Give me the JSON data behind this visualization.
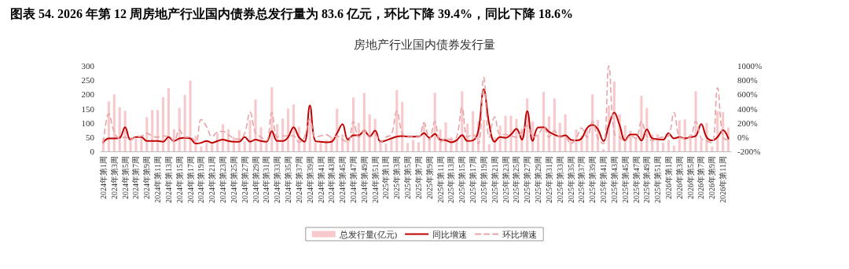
{
  "chart_data": {
    "type": "bar",
    "title": "图表 54. 2026 年第 12 周房地产行业国内债券总发行量为 83.6 亿元，环比下降 39.4%，同比下降 18.6%",
    "subtitle": "房地产行业国内债券发行量",
    "categories": [
      "2024年第1周",
      null,
      "2024年第3周",
      null,
      "2024年第5周",
      null,
      "2024年第7周",
      null,
      "2024年第9周",
      null,
      "2024年第11周",
      null,
      "2024年第13周",
      null,
      "2024年第15周",
      null,
      "2024年第17周",
      null,
      "2024年第19周",
      null,
      "2024年第21周",
      null,
      "2024年第23周",
      null,
      "2024年第25周",
      null,
      "2024年第27周",
      null,
      "2024年第29周",
      null,
      "2024年第31周",
      null,
      "2024年第33周",
      null,
      "2024年第35周",
      null,
      "2024年第37周",
      null,
      "2024年第39周",
      null,
      "2024年第41周",
      null,
      "2024年第43周",
      null,
      "2024年第45周",
      null,
      "2024年第47周",
      null,
      "2024年第49周",
      null,
      "2024年第51周",
      null,
      "2025年第1周",
      null,
      "2025年第3周",
      null,
      "2025年第5周",
      null,
      "2025年第7周",
      null,
      "2025年第9周",
      null,
      "2025年第11周",
      null,
      "2025年第13周",
      null,
      "2025年第15周",
      null,
      "2025年第17周",
      null,
      "2025年第19周",
      null,
      "2025年第21周",
      null,
      "2025年第23周",
      null,
      "2025年第25周",
      null,
      "2025年第27周",
      null,
      "2025年第29周",
      null,
      "2025年第31周",
      null,
      "2025年第33周",
      null,
      "2025年第35周",
      null,
      "2025年第37周",
      null,
      "2025年第39周",
      null,
      "2025年第41周",
      null,
      "2025年第43周",
      null,
      "2025年第45周",
      null,
      "2025年第47周",
      null,
      "2025年第49周",
      null,
      "2025年第51周",
      null,
      "2026年第1周",
      null,
      "2026年第3周",
      null,
      "2026年第5周",
      null,
      "2026年第7周",
      null,
      "2026年第9周",
      null,
      "2026年第11周",
      null
    ],
    "series": [
      {
        "name": "总发行量(亿元)",
        "type": "bar",
        "color": "#f8c9cb",
        "values": [
          45,
          175,
          200,
          155,
          142,
          50,
          45,
          50,
          120,
          145,
          145,
          190,
          222,
          78,
          153,
          198,
          248,
          55,
          17,
          35,
          30,
          65,
          95,
          78,
          50,
          75,
          35,
          110,
          182,
          85,
          40,
          225,
          95,
          115,
          150,
          164,
          86,
          40,
          114,
          30,
          30,
          40,
          50,
          150,
          60,
          50,
          189,
          100,
          205,
          130,
          114,
          40,
          27,
          40,
          215,
          173,
          30,
          40,
          32,
          100,
          45,
          206,
          77,
          102,
          50,
          40,
          211,
          97,
          141,
          105,
          110,
          25,
          50,
          90,
          125,
          125,
          114,
          80,
          186,
          105,
          60,
          209,
          123,
          186,
          100,
          130,
          40,
          77,
          55,
          80,
          200,
          110,
          8,
          161,
          245,
          130,
          91,
          73,
          50,
          195,
          152,
          59,
          60,
          30,
          40,
          20,
          109,
          112,
          60,
          211,
          40,
          100,
          18,
          141,
          138,
          83.6
        ]
      },
      {
        "name": "同比增速",
        "type": "line",
        "axis": "y2",
        "color": "#c00000",
        "line_style": "solid",
        "values": [
          -73,
          -18,
          -18,
          -10,
          138,
          -36,
          0,
          0,
          -55,
          -55,
          -55,
          -65,
          0,
          -55,
          -18,
          -10,
          -18,
          -91,
          -80,
          -55,
          -80,
          -55,
          -36,
          -55,
          -65,
          -65,
          0,
          -65,
          -36,
          -55,
          -65,
          84,
          -55,
          -55,
          0,
          138,
          0,
          -65,
          444,
          -55,
          -65,
          -73,
          -65,
          55,
          182,
          -36,
          25,
          25,
          91,
          7,
          91,
          -65,
          -47,
          -18,
          7,
          15,
          7,
          7,
          7,
          55,
          -10,
          44,
          -36,
          -44,
          -73,
          -44,
          29,
          -55,
          -47,
          91,
          673,
          182,
          -65,
          0,
          -10,
          36,
          116,
          -36,
          364,
          -55,
          135,
          138,
          73,
          36,
          7,
          25,
          -36,
          -47,
          -18,
          127,
          171,
          109,
          -55,
          164,
          345,
          164,
          -47,
          36,
          36,
          -47,
          109,
          -18,
          -29,
          -36,
          55,
          -18,
          0,
          -18,
          0,
          18,
          182,
          0,
          -47,
          0,
          98,
          -18.6
        ]
      },
      {
        "name": "环比增速",
        "type": "line",
        "axis": "y2",
        "color": "#e6a3a8",
        "line_style": "dashed",
        "values": [
          -73,
          327,
          73,
          -18,
          0,
          -36,
          0,
          15,
          55,
          15,
          0,
          15,
          15,
          -55,
          102,
          0,
          0,
          -73,
          247,
          145,
          7,
          73,
          80,
          36,
          -18,
          -29,
          55,
          350,
          60,
          0,
          -50,
          345,
          0,
          15,
          18,
          18,
          -73,
          0,
          255,
          0,
          18,
          36,
          0,
          15,
          -36,
          -73,
          218,
          0,
          91,
          0,
          36,
          -73,
          0,
          36,
          364,
          55,
          0,
          0,
          0,
          200,
          -36,
          218,
          -73,
          -18,
          -36,
          0,
          418,
          0,
          36,
          -95,
          840,
          0,
          284,
          36,
          36,
          18,
          0,
          73,
          164,
          0,
          36,
          145,
          0,
          91,
          0,
          0,
          -91,
          -18,
          127,
          0,
          218,
          -18,
          -95,
          1000,
          52,
          0,
          -55,
          18,
          -18,
          218,
          18,
          -47,
          -18,
          0,
          18,
          345,
          0,
          -18,
          0,
          218,
          -18,
          -55,
          -82,
          690,
          -2,
          -39.4
        ]
      }
    ],
    "ylim": [
      0,
      300
    ],
    "yticks": [
      0,
      50,
      100,
      150,
      200,
      250,
      300
    ],
    "y2lim": [
      -200,
      1000
    ],
    "y2ticks": [
      {
        "value": -200,
        "label": "-200%"
      },
      {
        "value": 0,
        "label": "0%"
      },
      {
        "value": 200,
        "label": "200%"
      },
      {
        "value": 400,
        "label": "400%"
      },
      {
        "value": 600,
        "label": "600%"
      },
      {
        "value": 800,
        "label": "800%"
      },
      {
        "value": 1000,
        "label": "1000%"
      }
    ],
    "grid": false,
    "legend": "bottom",
    "marker": "none"
  }
}
